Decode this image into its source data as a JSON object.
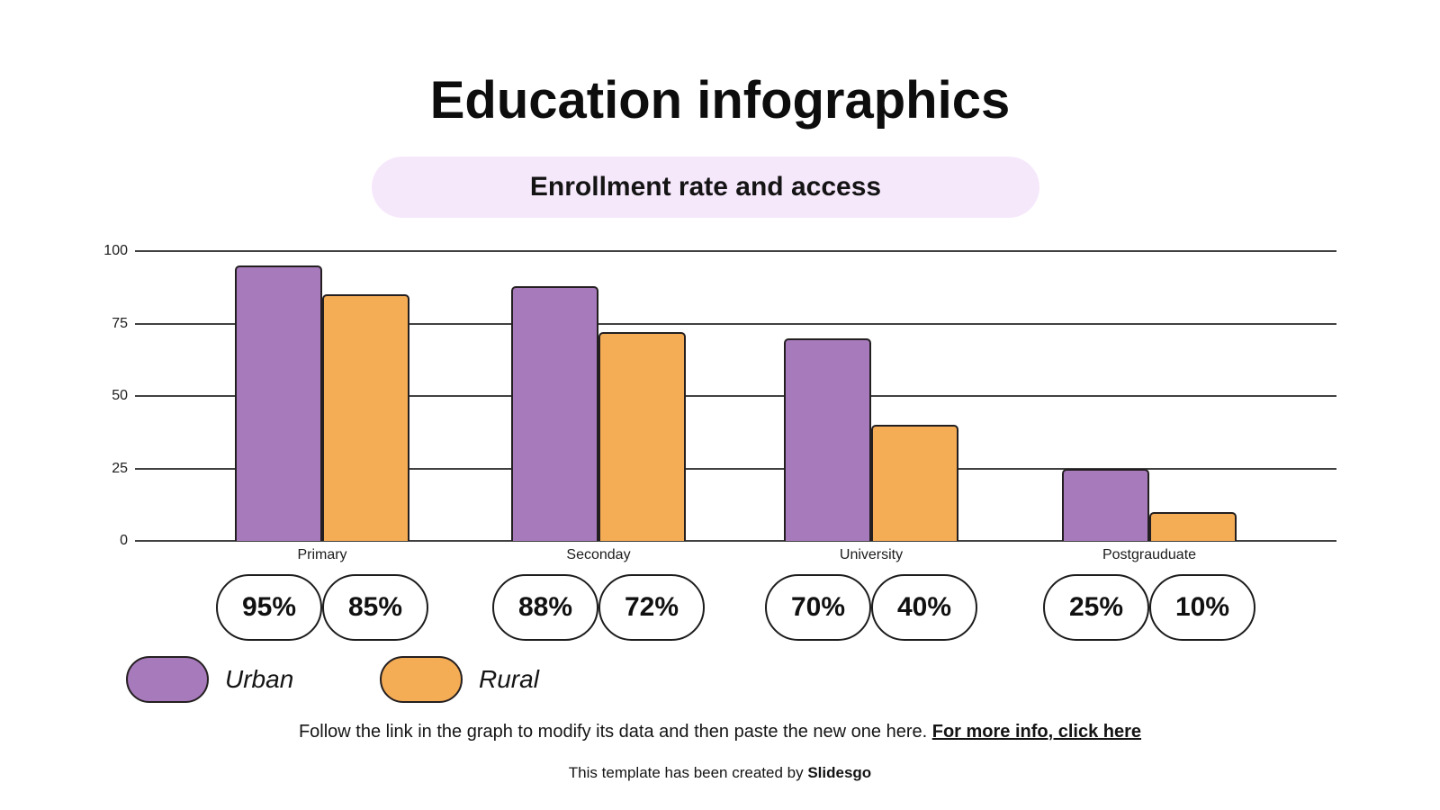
{
  "title": "Education infographics",
  "subtitle": "Enrollment rate and access",
  "chart_data": {
    "type": "bar",
    "categories": [
      "Primary",
      "Seconday",
      "University",
      "Postgrauduate"
    ],
    "series": [
      {
        "name": "Urban",
        "color": "#a77abc",
        "values": [
          95,
          88,
          70,
          25
        ]
      },
      {
        "name": "Rural",
        "color": "#f4ac55",
        "values": [
          85,
          72,
          40,
          10
        ]
      }
    ],
    "value_labels": [
      [
        "95%",
        "85%"
      ],
      [
        "88%",
        "72%"
      ],
      [
        "70%",
        "40%"
      ],
      [
        "25%",
        "10%"
      ]
    ],
    "yticks": [
      "100",
      "75",
      "50",
      "25",
      "0"
    ],
    "ylim": [
      0,
      100
    ],
    "grid": true,
    "legend_position": "bottom-left"
  },
  "legend": [
    {
      "label": "Urban",
      "color": "#a77abc"
    },
    {
      "label": "Rural",
      "color": "#f4ac55"
    }
  ],
  "footer": {
    "note_text": "Follow the link in the graph to modify its data and then paste the new one here. ",
    "note_link": "For more info, click here",
    "credit_text": "This template has been created by ",
    "credit_brand": "Slidesgo"
  },
  "colors": {
    "urban": "#a77abc",
    "rural": "#f4ac55",
    "subtitle_bg": "#f6e8fb",
    "gridline": "#414141"
  }
}
